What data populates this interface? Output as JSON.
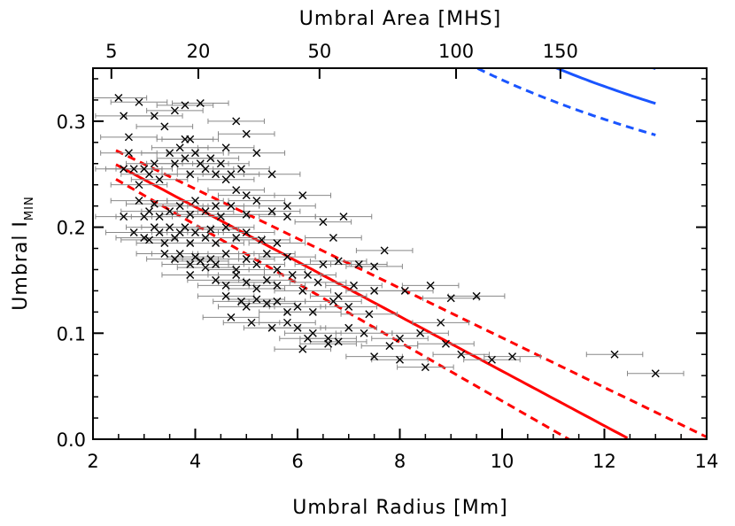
{
  "chart_data": {
    "type": "scatter",
    "xlabel": "Umbral Radius [Mm]",
    "ylabel_main": "Umbral I",
    "ylabel_sub": "MIN",
    "top_axis_label": "Umbral Area [MHS]",
    "xlim": [
      2,
      14
    ],
    "ylim": [
      0.0,
      0.35
    ],
    "x_ticks": [
      2,
      4,
      6,
      8,
      10,
      12,
      14
    ],
    "x_tick_labels": [
      "2",
      "4",
      "6",
      "8",
      "10",
      "12",
      "14"
    ],
    "y_ticks": [
      0.0,
      0.1,
      0.2,
      0.3
    ],
    "y_tick_labels": [
      "0.0",
      "0.1",
      "0.2",
      "0.3"
    ],
    "top_ticks": [
      5,
      20,
      50,
      100,
      150
    ],
    "top_tick_labels": [
      "5",
      "20",
      "50",
      "100",
      "150"
    ],
    "top_tick_radius": [
      2.36,
      4.06,
      6.43,
      9.1,
      11.14
    ],
    "grid": false,
    "colors": {
      "points": "#000000",
      "errorbars": "#888888",
      "linear_fit": "#ff0000",
      "power_fit": "#1a55ff"
    },
    "points": [
      [
        2.5,
        0.322
      ],
      [
        2.6,
        0.305
      ],
      [
        2.7,
        0.285
      ],
      [
        2.9,
        0.318
      ],
      [
        3.2,
        0.305
      ],
      [
        3.6,
        0.31
      ],
      [
        3.8,
        0.315
      ],
      [
        4.1,
        0.317
      ],
      [
        3.4,
        0.295
      ],
      [
        3.8,
        0.283
      ],
      [
        3.9,
        0.283
      ],
      [
        4.8,
        0.3
      ],
      [
        5.0,
        0.288
      ],
      [
        2.6,
        0.255
      ],
      [
        2.7,
        0.27
      ],
      [
        2.8,
        0.255
      ],
      [
        2.9,
        0.24
      ],
      [
        3.0,
        0.255
      ],
      [
        3.1,
        0.25
      ],
      [
        3.2,
        0.26
      ],
      [
        3.3,
        0.245
      ],
      [
        3.5,
        0.27
      ],
      [
        3.6,
        0.26
      ],
      [
        3.7,
        0.275
      ],
      [
        3.8,
        0.265
      ],
      [
        3.9,
        0.25
      ],
      [
        4.0,
        0.27
      ],
      [
        4.1,
        0.26
      ],
      [
        4.2,
        0.255
      ],
      [
        4.3,
        0.265
      ],
      [
        4.4,
        0.25
      ],
      [
        4.5,
        0.26
      ],
      [
        4.6,
        0.245
      ],
      [
        4.7,
        0.25
      ],
      [
        4.8,
        0.235
      ],
      [
        4.9,
        0.255
      ],
      [
        5.2,
        0.27
      ],
      [
        5.5,
        0.25
      ],
      [
        5.8,
        0.22
      ],
      [
        4.6,
        0.275
      ],
      [
        5.0,
        0.23
      ],
      [
        2.6,
        0.21
      ],
      [
        2.9,
        0.225
      ],
      [
        3.0,
        0.21
      ],
      [
        3.1,
        0.215
      ],
      [
        3.2,
        0.222
      ],
      [
        3.3,
        0.21
      ],
      [
        3.5,
        0.215
      ],
      [
        3.7,
        0.22
      ],
      [
        3.9,
        0.212
      ],
      [
        4.0,
        0.225
      ],
      [
        4.2,
        0.215
      ],
      [
        4.4,
        0.22
      ],
      [
        4.5,
        0.21
      ],
      [
        4.7,
        0.22
      ],
      [
        5.0,
        0.212
      ],
      [
        5.2,
        0.225
      ],
      [
        5.5,
        0.215
      ],
      [
        5.8,
        0.21
      ],
      [
        6.1,
        0.23
      ],
      [
        6.5,
        0.205
      ],
      [
        6.9,
        0.21
      ],
      [
        6.7,
        0.19
      ],
      [
        2.8,
        0.195
      ],
      [
        3.0,
        0.19
      ],
      [
        3.1,
        0.188
      ],
      [
        3.2,
        0.2
      ],
      [
        3.3,
        0.195
      ],
      [
        3.4,
        0.185
      ],
      [
        3.5,
        0.2
      ],
      [
        3.6,
        0.19
      ],
      [
        3.7,
        0.195
      ],
      [
        3.8,
        0.2
      ],
      [
        3.9,
        0.185
      ],
      [
        4.0,
        0.195
      ],
      [
        4.2,
        0.19
      ],
      [
        4.3,
        0.198
      ],
      [
        4.4,
        0.185
      ],
      [
        4.6,
        0.2
      ],
      [
        4.8,
        0.19
      ],
      [
        5.0,
        0.195
      ],
      [
        5.3,
        0.188
      ],
      [
        5.6,
        0.185
      ],
      [
        7.7,
        0.178
      ],
      [
        3.4,
        0.175
      ],
      [
        3.6,
        0.17
      ],
      [
        3.7,
        0.175
      ],
      [
        3.9,
        0.165
      ],
      [
        4.0,
        0.172
      ],
      [
        4.1,
        0.168
      ],
      [
        4.2,
        0.162
      ],
      [
        4.3,
        0.17
      ],
      [
        4.4,
        0.165
      ],
      [
        4.6,
        0.175
      ],
      [
        4.8,
        0.16
      ],
      [
        5.0,
        0.17
      ],
      [
        5.2,
        0.165
      ],
      [
        5.4,
        0.175
      ],
      [
        5.6,
        0.16
      ],
      [
        5.8,
        0.172
      ],
      [
        6.2,
        0.155
      ],
      [
        6.5,
        0.165
      ],
      [
        6.8,
        0.168
      ],
      [
        7.2,
        0.165
      ],
      [
        7.5,
        0.163
      ],
      [
        3.9,
        0.155
      ],
      [
        4.4,
        0.15
      ],
      [
        4.6,
        0.145
      ],
      [
        4.8,
        0.155
      ],
      [
        5.0,
        0.148
      ],
      [
        5.2,
        0.142
      ],
      [
        5.4,
        0.15
      ],
      [
        5.6,
        0.145
      ],
      [
        5.9,
        0.155
      ],
      [
        6.1,
        0.14
      ],
      [
        6.4,
        0.148
      ],
      [
        6.8,
        0.135
      ],
      [
        7.1,
        0.145
      ],
      [
        7.5,
        0.14
      ],
      [
        8.1,
        0.14
      ],
      [
        8.6,
        0.145
      ],
      [
        4.6,
        0.135
      ],
      [
        4.9,
        0.13
      ],
      [
        5.0,
        0.125
      ],
      [
        5.2,
        0.132
      ],
      [
        5.4,
        0.128
      ],
      [
        5.6,
        0.13
      ],
      [
        5.8,
        0.12
      ],
      [
        6.0,
        0.125
      ],
      [
        6.3,
        0.12
      ],
      [
        6.7,
        0.13
      ],
      [
        7.0,
        0.125
      ],
      [
        7.4,
        0.118
      ],
      [
        9.5,
        0.135
      ],
      [
        9.0,
        0.133
      ],
      [
        4.7,
        0.115
      ],
      [
        5.1,
        0.11
      ],
      [
        5.5,
        0.105
      ],
      [
        5.8,
        0.11
      ],
      [
        6.0,
        0.105
      ],
      [
        6.3,
        0.1
      ],
      [
        6.6,
        0.095
      ],
      [
        7.0,
        0.105
      ],
      [
        7.3,
        0.1
      ],
      [
        8.0,
        0.095
      ],
      [
        8.4,
        0.1
      ],
      [
        8.8,
        0.11
      ],
      [
        6.2,
        0.095
      ],
      [
        6.6,
        0.09
      ],
      [
        6.8,
        0.092
      ],
      [
        7.8,
        0.088
      ],
      [
        8.9,
        0.09
      ],
      [
        6.1,
        0.085
      ],
      [
        7.5,
        0.078
      ],
      [
        8.0,
        0.075
      ],
      [
        8.5,
        0.068
      ],
      [
        9.2,
        0.08
      ],
      [
        9.8,
        0.075
      ],
      [
        10.2,
        0.078
      ],
      [
        12.2,
        0.08
      ],
      [
        13.0,
        0.062
      ]
    ],
    "x_err": 0.55,
    "series": [
      {
        "name": "",
        "kind": "linear_fit",
        "color": "#ff0000",
        "slope": -0.0258,
        "intercept": 0.3223,
        "x_range": [
          2.45,
          12.45
        ]
      },
      {
        "name": "",
        "kind": "linear_fit_upper",
        "color": "#ff0000",
        "dashed": true,
        "slope": -0.0234,
        "intercept": 0.3297,
        "x_range": [
          2.45,
          14.0
        ]
      },
      {
        "name": "",
        "kind": "linear_fit_lower",
        "color": "#ff0000",
        "dashed": true,
        "slope": -0.0277,
        "intercept": 0.3131,
        "x_range": [
          2.45,
          12.5
        ]
      },
      {
        "name": "",
        "kind": "power_fit",
        "color": "#1a55ff",
        "base": 0.4,
        "scale": 4.35,
        "exponent": -0.73,
        "offset": 0.0492,
        "x_range": [
          2.8,
          13.0
        ]
      },
      {
        "name": "",
        "kind": "power_fit_upper",
        "color": "#1a55ff",
        "dashed": true,
        "base": 0.4,
        "scale": 4.75,
        "exponent": -0.73,
        "offset": 0.0574,
        "x_range": [
          3.05,
          13.0
        ]
      },
      {
        "name": "",
        "kind": "power_fit_lower",
        "color": "#1a55ff",
        "dashed": true,
        "base": 0.4,
        "scale": 4.0,
        "exponent": -0.73,
        "offset": 0.041,
        "x_range": [
          2.5,
          13.0
        ]
      }
    ]
  }
}
